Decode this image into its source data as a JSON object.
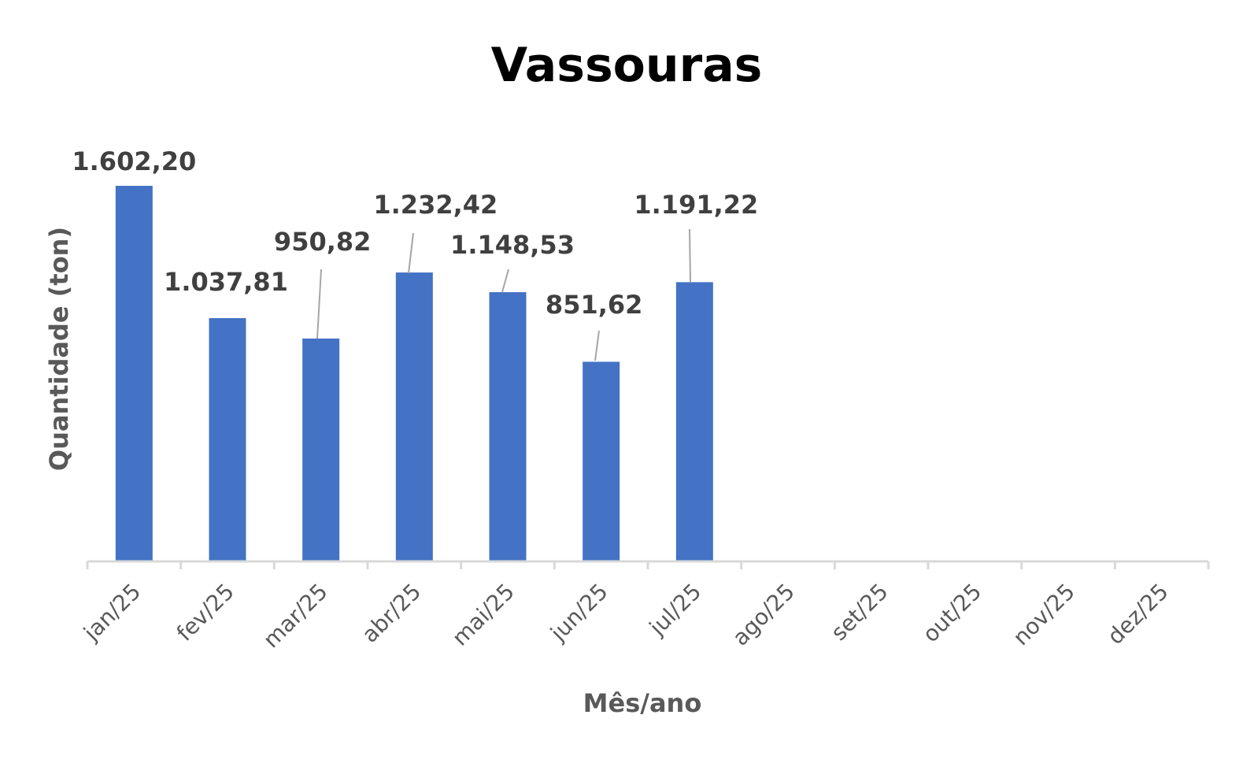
{
  "chart_data": {
    "type": "bar",
    "title": "Vassouras",
    "xlabel": "Mês/ano",
    "ylabel": "Quantidade (ton)",
    "categories": [
      "jan/25",
      "fev/25",
      "mar/25",
      "abr/25",
      "mai/25",
      "jun/25",
      "jul/25",
      "ago/25",
      "set/25",
      "out/25",
      "nov/25",
      "dez/25"
    ],
    "values": [
      1602.2,
      1037.81,
      950.82,
      1232.42,
      1148.53,
      851.62,
      1191.22,
      null,
      null,
      null,
      null,
      null
    ],
    "data_labels": [
      "1.602,20",
      "1.037,81",
      "950,82",
      "1.232,42",
      "1.148,53",
      "851,62",
      "1.191,22",
      "",
      "",
      "",
      "",
      ""
    ],
    "ylim": [
      0,
      1650
    ],
    "grid": false,
    "legend": "none",
    "colors": {
      "bar": "#4472C4",
      "axis": "#D9D9D9",
      "leader": "#A6A6A6",
      "title": "#000000",
      "axis_text": "#595959",
      "data_label": "#404040"
    }
  }
}
